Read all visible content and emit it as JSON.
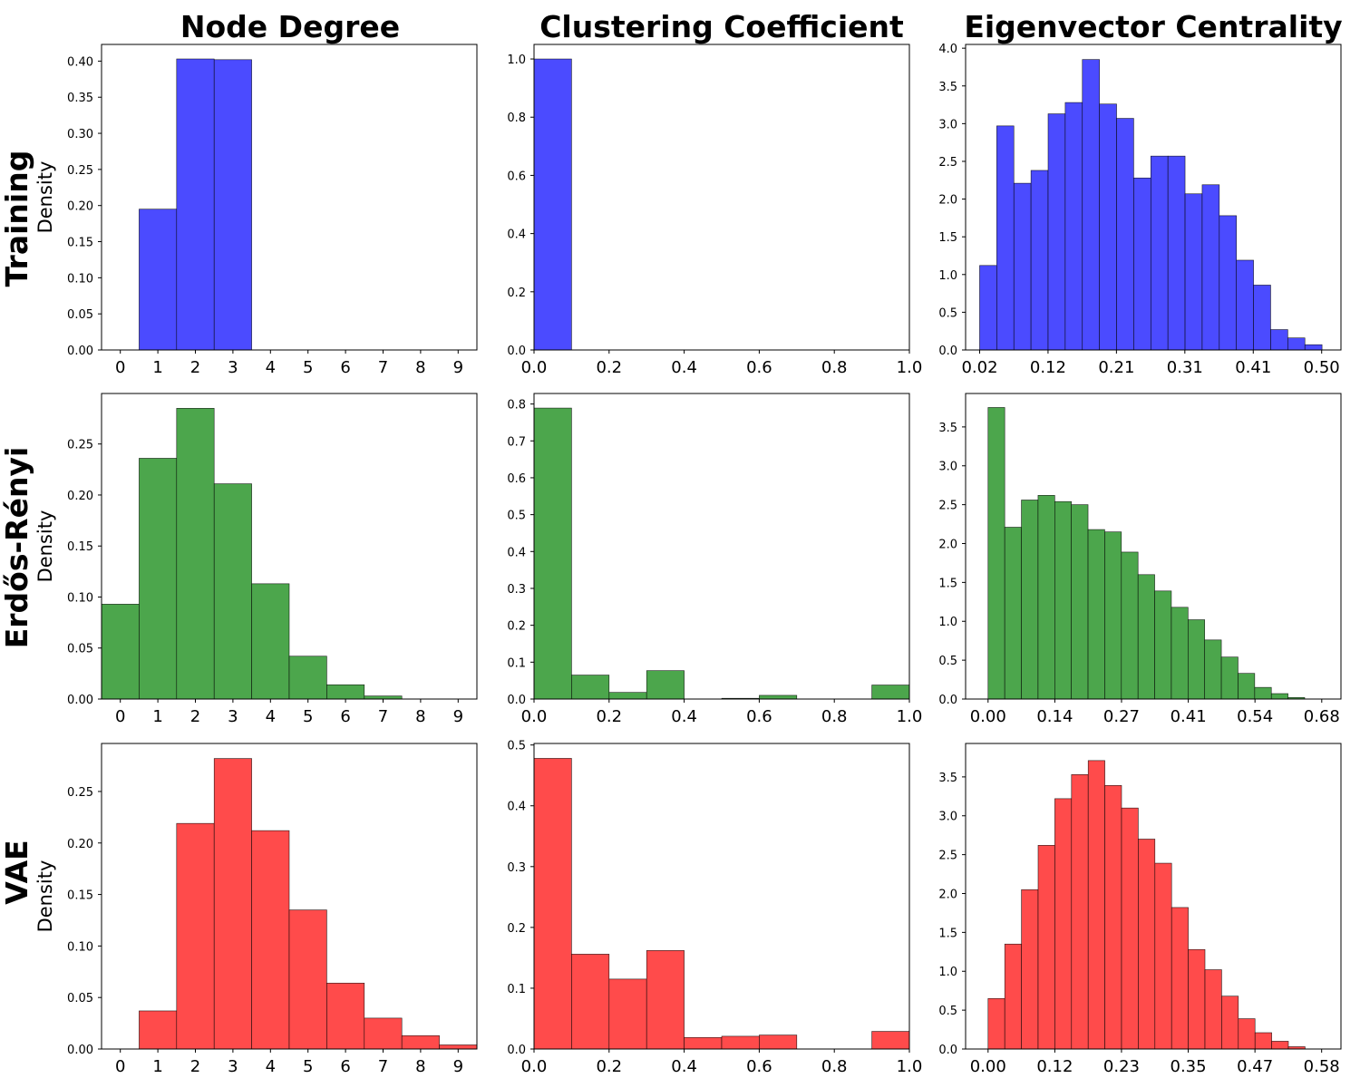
{
  "figure": {
    "column_titles": [
      "Node Degree",
      "Clustering Coefficient",
      "Eigenvector Centrality"
    ],
    "row_titles": [
      "Training",
      "Erdős-Rényi",
      "VAE"
    ],
    "row_colors": [
      "#4b4bff",
      "#4ca64c",
      "#ff4b4b"
    ],
    "ylabel": "Density"
  },
  "chart_data": [
    {
      "id": "training-degree",
      "type": "bar",
      "row": 0,
      "col": 0,
      "xlabel": "",
      "ylabel": "Density",
      "x_range": [
        -0.5,
        9.5
      ],
      "ylim": [
        0,
        0.4231
      ],
      "x_ticks": [
        0,
        1,
        2,
        3,
        4,
        5,
        6,
        7,
        8,
        9
      ],
      "x_tick_labels": [
        "0",
        "1",
        "2",
        "3",
        "4",
        "5",
        "6",
        "7",
        "8",
        "9"
      ],
      "y_ticks": [
        0,
        0.05,
        0.1,
        0.15,
        0.2,
        0.25,
        0.3,
        0.35,
        0.4
      ],
      "y_tick_labels": [
        "0.00",
        "0.05",
        "0.10",
        "0.15",
        "0.20",
        "0.25",
        "0.30",
        "0.35",
        "0.40"
      ],
      "bin_start": 0.5,
      "bin_width": 1,
      "values": [
        0.195,
        0.403,
        0.402
      ]
    },
    {
      "id": "training-clustering",
      "type": "bar",
      "row": 0,
      "col": 1,
      "xlabel": "",
      "ylabel": "",
      "x_range": [
        0,
        1
      ],
      "ylim": [
        0,
        1.05
      ],
      "x_ticks": [
        0,
        0.2,
        0.4,
        0.6,
        0.8,
        1.0
      ],
      "x_tick_labels": [
        "0.0",
        "0.2",
        "0.4",
        "0.6",
        "0.8",
        "1.0"
      ],
      "y_ticks": [
        0,
        0.2,
        0.4,
        0.6,
        0.8,
        1.0
      ],
      "y_tick_labels": [
        "0.0",
        "0.2",
        "0.4",
        "0.6",
        "0.8",
        "1.0"
      ],
      "bin_start": 0,
      "bin_width": 0.1,
      "values": [
        1.0
      ]
    },
    {
      "id": "training-eigenvector",
      "type": "bar",
      "row": 0,
      "col": 2,
      "xlabel": "",
      "ylabel": "",
      "x_range": [
        -0.0025,
        0.5325
      ],
      "ylim": [
        0,
        4.05
      ],
      "x_ticks": [
        0.0175,
        0.115,
        0.2125,
        0.31,
        0.4075,
        0.505
      ],
      "x_tick_labels": [
        "0.02",
        "0.12",
        "0.21",
        "0.31",
        "0.41",
        "0.50"
      ],
      "y_ticks": [
        0,
        0.5,
        1.0,
        1.5,
        2.0,
        2.5,
        3.0,
        3.5,
        4.0
      ],
      "y_tick_labels": [
        "0.0",
        "0.5",
        "1.0",
        "1.5",
        "2.0",
        "2.5",
        "3.0",
        "3.5",
        "4.0"
      ],
      "bin_start": 0.0175,
      "bin_width": 0.0244,
      "values": [
        1.12,
        2.97,
        2.21,
        2.38,
        3.13,
        3.28,
        3.85,
        3.26,
        3.07,
        2.28,
        2.57,
        2.57,
        2.07,
        2.19,
        1.78,
        1.19,
        0.86,
        0.27,
        0.16,
        0.07
      ]
    },
    {
      "id": "er-degree",
      "type": "bar",
      "row": 1,
      "col": 0,
      "xlabel": "",
      "ylabel": "Density",
      "x_range": [
        -0.5,
        9.5
      ],
      "ylim": [
        0,
        0.2995
      ],
      "x_ticks": [
        0,
        1,
        2,
        3,
        4,
        5,
        6,
        7,
        8,
        9
      ],
      "x_tick_labels": [
        "0",
        "1",
        "2",
        "3",
        "4",
        "5",
        "6",
        "7",
        "8",
        "9"
      ],
      "y_ticks": [
        0,
        0.05,
        0.1,
        0.15,
        0.2,
        0.25
      ],
      "y_tick_labels": [
        "0.00",
        "0.05",
        "0.10",
        "0.15",
        "0.20",
        "0.25"
      ],
      "bin_start": -0.5,
      "bin_width": 1,
      "values": [
        0.093,
        0.236,
        0.285,
        0.211,
        0.113,
        0.042,
        0.014,
        0.003,
        0,
        0
      ]
    },
    {
      "id": "er-clustering",
      "type": "bar",
      "row": 1,
      "col": 1,
      "xlabel": "",
      "ylabel": "",
      "x_range": [
        0,
        1
      ],
      "ylim": [
        0,
        0.8285
      ],
      "x_ticks": [
        0,
        0.2,
        0.4,
        0.6,
        0.8,
        1.0
      ],
      "x_tick_labels": [
        "0.0",
        "0.2",
        "0.4",
        "0.6",
        "0.8",
        "1.0"
      ],
      "y_ticks": [
        0,
        0.1,
        0.2,
        0.3,
        0.4,
        0.5,
        0.6,
        0.7,
        0.8
      ],
      "y_tick_labels": [
        "0.0",
        "0.1",
        "0.2",
        "0.3",
        "0.4",
        "0.5",
        "0.6",
        "0.7",
        "0.8"
      ],
      "bin_start": 0,
      "bin_width": 0.1,
      "values": [
        0.789,
        0.065,
        0.018,
        0.077,
        0,
        0.002,
        0.01,
        0,
        0,
        0.038
      ]
    },
    {
      "id": "er-eigenvector",
      "type": "bar",
      "row": 1,
      "col": 2,
      "xlabel": "",
      "ylabel": "",
      "x_range": [
        -0.0457,
        0.7179
      ],
      "ylim": [
        0,
        3.93
      ],
      "x_ticks": [
        0,
        0.1358,
        0.2715,
        0.4073,
        0.543,
        0.6788
      ],
      "x_tick_labels": [
        "0.00",
        "0.14",
        "0.27",
        "0.41",
        "0.54",
        "0.68"
      ],
      "y_ticks": [
        0,
        0.5,
        1.0,
        1.5,
        2.0,
        2.5,
        3.0,
        3.5
      ],
      "y_tick_labels": [
        "0.0",
        "0.5",
        "1.0",
        "1.5",
        "2.0",
        "2.5",
        "3.0",
        "3.5"
      ],
      "bin_start": 0,
      "bin_width": 0.0339,
      "values": [
        3.75,
        2.21,
        2.56,
        2.62,
        2.54,
        2.5,
        2.18,
        2.15,
        1.89,
        1.6,
        1.39,
        1.18,
        1.02,
        0.76,
        0.54,
        0.33,
        0.15,
        0.07,
        0.02,
        0
      ]
    },
    {
      "id": "vae-degree",
      "type": "bar",
      "row": 2,
      "col": 0,
      "xlabel": "",
      "ylabel": "Density",
      "x_range": [
        -0.5,
        9.5
      ],
      "ylim": [
        0,
        0.2966
      ],
      "x_ticks": [
        0,
        1,
        2,
        3,
        4,
        5,
        6,
        7,
        8,
        9
      ],
      "x_tick_labels": [
        "0",
        "1",
        "2",
        "3",
        "4",
        "5",
        "6",
        "7",
        "8",
        "9"
      ],
      "y_ticks": [
        0,
        0.05,
        0.1,
        0.15,
        0.2,
        0.25
      ],
      "y_tick_labels": [
        "0.00",
        "0.05",
        "0.10",
        "0.15",
        "0.20",
        "0.25"
      ],
      "bin_start": 0.5,
      "bin_width": 1,
      "values": [
        0.037,
        0.219,
        0.282,
        0.212,
        0.135,
        0.064,
        0.03,
        0.013,
        0.004
      ]
    },
    {
      "id": "vae-clustering",
      "type": "bar",
      "row": 2,
      "col": 1,
      "xlabel": "",
      "ylabel": "",
      "x_range": [
        0,
        1
      ],
      "ylim": [
        0,
        0.5025
      ],
      "x_ticks": [
        0,
        0.2,
        0.4,
        0.6,
        0.8,
        1.0
      ],
      "x_tick_labels": [
        "0.0",
        "0.2",
        "0.4",
        "0.6",
        "0.8",
        "1.0"
      ],
      "y_ticks": [
        0,
        0.1,
        0.2,
        0.3,
        0.4,
        0.5
      ],
      "y_tick_labels": [
        "0.0",
        "0.1",
        "0.2",
        "0.3",
        "0.4",
        "0.5"
      ],
      "bin_start": 0,
      "bin_width": 0.1,
      "values": [
        0.478,
        0.156,
        0.115,
        0.162,
        0.019,
        0.021,
        0.023,
        0,
        0,
        0.029
      ]
    },
    {
      "id": "vae-eigenvector",
      "type": "bar",
      "row": 2,
      "col": 2,
      "xlabel": "",
      "ylabel": "",
      "x_range": [
        -0.0392,
        0.6155
      ],
      "ylim": [
        0,
        3.93
      ],
      "x_ticks": [
        0,
        0.1164,
        0.2327,
        0.3491,
        0.4655,
        0.5818
      ],
      "x_tick_labels": [
        "0.00",
        "0.12",
        "0.23",
        "0.35",
        "0.47",
        "0.58"
      ],
      "y_ticks": [
        0,
        0.5,
        1.0,
        1.5,
        2.0,
        2.5,
        3.0,
        3.5
      ],
      "y_tick_labels": [
        "0.0",
        "0.5",
        "1.0",
        "1.5",
        "2.0",
        "2.5",
        "3.0",
        "3.5"
      ],
      "bin_start": 0,
      "bin_width": 0.0291,
      "values": [
        0.65,
        1.35,
        2.05,
        2.62,
        3.22,
        3.53,
        3.71,
        3.39,
        3.1,
        2.7,
        2.39,
        1.82,
        1.28,
        1.02,
        0.68,
        0.39,
        0.21,
        0.1,
        0.03,
        0
      ]
    }
  ]
}
